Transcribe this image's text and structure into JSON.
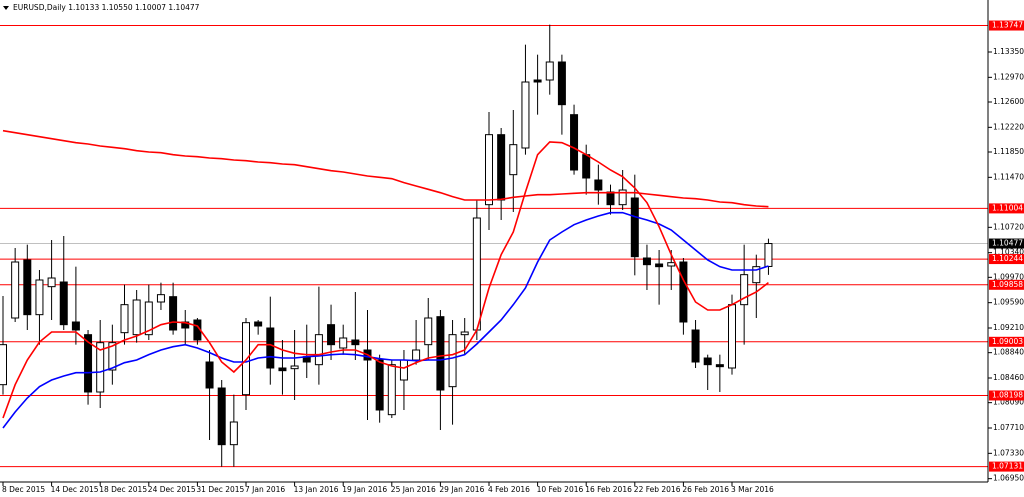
{
  "chart_data": {
    "type": "candlestick",
    "title": "EURUSD,Daily 1.10133 1.10550 1.10007 1.10477",
    "categories": [
      "8 Dec 2015",
      null,
      null,
      null,
      "14 Dec 2015",
      null,
      null,
      null,
      "18 Dec 2015",
      null,
      null,
      null,
      "24 Dec 2015",
      null,
      null,
      null,
      "31 Dec 2015",
      null,
      null,
      null,
      "7 Jan 2016",
      null,
      null,
      null,
      "13 Jan 2016",
      null,
      null,
      null,
      "19 Jan 2016",
      null,
      null,
      null,
      "25 Jan 2016",
      null,
      null,
      null,
      "29 Jan 2016",
      null,
      null,
      null,
      "4 Feb 2016",
      null,
      null,
      null,
      "10 Feb 2016",
      null,
      null,
      null,
      "16 Feb 2016",
      null,
      null,
      null,
      "22 Feb 2016",
      null,
      null,
      null,
      "26 Feb 2016",
      null,
      null,
      null,
      "3 Mar 2016",
      null,
      null,
      null
    ],
    "open": [
      1.0836,
      1.0936,
      1.1023,
      1.0941,
      1.0983,
      1.099,
      1.093,
      1.0911,
      1.0825,
      1.0858,
      1.0914,
      1.0911,
      1.0911,
      1.096,
      1.0968,
      1.093,
      1.0933,
      1.087,
      1.0831,
      1.0746,
      1.0821,
      1.093,
      1.0921,
      1.0861,
      1.086,
      1.0878,
      1.0866,
      1.0926,
      1.0891,
      1.0903,
      1.0888,
      1.0873,
      1.0791,
      1.0843,
      1.0873,
      1.0896,
      1.0938,
      1.0833,
      1.0911,
      1.0918,
      1.1106,
      1.1211,
      1.1151,
      1.1191,
      1.1293,
      1.1293,
      1.132,
      1.1241,
      1.1181,
      1.1143,
      1.1125,
      1.1106,
      1.1116,
      1.1026,
      1.1017,
      1.1014,
      1.102,
      1.0918,
      1.0876,
      1.0866,
      1.0861,
      1.0956,
      1.0989,
      1.10133
    ],
    "high": [
      1.0969,
      1.1041,
      1.1046,
      1.1008,
      1.1053,
      1.1059,
      1.1013,
      1.0918,
      1.0933,
      1.0926,
      1.0986,
      1.0978,
      1.0986,
      1.0989,
      1.0989,
      1.0948,
      1.0936,
      1.0888,
      1.0843,
      1.0821,
      1.0936,
      1.0933,
      1.0968,
      1.0903,
      1.0918,
      1.0926,
      1.0983,
      1.0956,
      1.0926,
      1.0975,
      1.0948,
      1.0881,
      1.0873,
      1.0888,
      1.0933,
      1.0966,
      1.0948,
      1.0933,
      1.0936,
      1.1113,
      1.1245,
      1.1221,
      1.1248,
      1.1346,
      1.1331,
      1.1376,
      1.1331,
      1.1256,
      1.1196,
      1.1166,
      1.1136,
      1.1158,
      1.1151,
      1.1046,
      1.1038,
      1.1038,
      1.1026,
      1.0933,
      1.0881,
      1.0881,
      1.0971,
      1.1046,
      1.1031,
      1.1055
    ],
    "low": [
      1.0821,
      1.093,
      1.0918,
      1.0896,
      1.0933,
      1.0918,
      1.0896,
      1.0806,
      1.0801,
      1.0836,
      1.0896,
      1.0899,
      1.0903,
      1.0948,
      1.0911,
      1.0896,
      1.0896,
      1.0753,
      1.0713,
      1.0713,
      1.0798,
      1.0911,
      1.0836,
      1.0821,
      1.0813,
      1.0846,
      1.0836,
      1.0873,
      1.0881,
      1.0873,
      1.0783,
      1.0779,
      1.0786,
      1.0798,
      1.0866,
      1.0873,
      1.0768,
      1.0776,
      1.0881,
      1.0903,
      1.1068,
      1.1083,
      1.1095,
      1.1181,
      1.1241,
      1.1271,
      1.1211,
      1.1151,
      1.1121,
      1.1106,
      1.1091,
      1.1098,
      1.1,
      1.0978,
      1.0956,
      1.0978,
      1.0911,
      1.0861,
      1.0828,
      1.0825,
      1.0851,
      1.0896,
      1.0936,
      1.10007
    ],
    "close": [
      1.0896,
      1.102,
      1.0941,
      1.0993,
      1.0996,
      1.0926,
      1.0918,
      1.0825,
      1.0899,
      1.0899,
      1.0956,
      1.0963,
      1.096,
      1.0971,
      1.0918,
      1.0921,
      1.0903,
      1.0831,
      1.0746,
      1.078,
      1.0929,
      1.0924,
      1.0861,
      1.0857,
      1.0864,
      1.087,
      1.0911,
      1.0896,
      1.0906,
      1.0896,
      1.0873,
      1.0798,
      1.0866,
      1.0873,
      1.0888,
      1.0936,
      1.0828,
      1.0911,
      1.0915,
      1.1086,
      1.1211,
      1.1113,
      1.1196,
      1.129,
      1.129,
      1.132,
      1.1256,
      1.1158,
      1.1146,
      1.1128,
      1.1106,
      1.1128,
      1.1028,
      1.1016,
      1.1013,
      1.1019,
      1.093,
      1.087,
      1.0866,
      1.0863,
      1.0956,
      1.1001,
      1.1013,
      1.10477
    ],
    "series": [
      {
        "color": "#ff0000",
        "values": [
          1.1217,
          1.1214,
          1.1211,
          1.1208,
          1.1205,
          1.1202,
          1.1199,
          1.1197,
          1.1194,
          1.1192,
          1.119,
          1.1187,
          1.1185,
          1.1184,
          1.1181,
          1.1179,
          1.1178,
          1.1176,
          1.1175,
          1.1173,
          1.1172,
          1.117,
          1.1169,
          1.1167,
          1.1166,
          1.1163,
          1.116,
          1.1157,
          1.1155,
          1.1152,
          1.1149,
          1.1147,
          1.1145,
          1.1139,
          1.1134,
          1.1129,
          1.1124,
          1.1118,
          1.1113,
          1.1113,
          1.1113,
          1.1114,
          1.1117,
          1.1119,
          1.1121,
          1.1121,
          1.1122,
          1.1123,
          1.1124,
          1.1124,
          1.1124,
          1.1124,
          1.1124,
          1.1122,
          1.112,
          1.1118,
          1.1116,
          1.1115,
          1.1113,
          1.111,
          1.1109,
          1.1106,
          1.1104,
          1.1103
        ]
      },
      {
        "color": "#0000ff",
        "values": [
          1.0771,
          1.0795,
          1.0816,
          1.0833,
          1.0843,
          1.0849,
          1.0854,
          1.0854,
          1.0855,
          1.0861,
          1.0869,
          1.0873,
          1.0881,
          1.0888,
          1.0893,
          1.0896,
          1.0891,
          1.0884,
          1.0876,
          1.087,
          1.087,
          1.0876,
          1.0878,
          1.0876,
          1.0876,
          1.0878,
          1.0879,
          1.0881,
          1.0882,
          1.0881,
          1.0878,
          1.0875,
          1.0873,
          1.0873,
          1.0872,
          1.0873,
          1.0873,
          1.0876,
          1.0881,
          1.0897,
          1.0915,
          1.0933,
          1.0956,
          1.0981,
          1.102,
          1.1053,
          1.1065,
          1.1076,
          1.1083,
          1.1089,
          1.1094,
          1.1094,
          1.1088,
          1.1083,
          1.1077,
          1.1068,
          1.1053,
          1.1038,
          1.1023,
          1.1013,
          1.1008,
          1.1008,
          1.1008,
          1.1014
        ]
      },
      {
        "color": "#ff0000",
        "values": [
          1.0786,
          1.0836,
          1.0873,
          1.09,
          1.0915,
          1.0915,
          1.0915,
          1.09,
          1.0888,
          1.0894,
          1.0903,
          1.0909,
          1.0917,
          1.0926,
          1.093,
          1.0929,
          1.0924,
          1.0899,
          1.087,
          1.0855,
          1.0873,
          1.0896,
          1.0896,
          1.0888,
          1.0883,
          1.0881,
          1.0881,
          1.0885,
          1.0888,
          1.0888,
          1.0881,
          1.087,
          1.0864,
          1.0861,
          1.0869,
          1.0876,
          1.0879,
          1.0881,
          1.0888,
          1.0918,
          1.0981,
          1.1031,
          1.1065,
          1.1125,
          1.1181,
          1.12,
          1.1199,
          1.1191,
          1.1181,
          1.117,
          1.1158,
          1.1148,
          1.1131,
          1.1109,
          1.1073,
          1.1031,
          1.0993,
          1.096,
          1.0948,
          1.0948,
          1.0956,
          1.0966,
          1.0975,
          1.0989
        ]
      }
    ],
    "levels": [
      {
        "value": 1.13747,
        "color": "#ff0000"
      },
      {
        "value": 1.11004,
        "color": "#ff0000"
      },
      {
        "value": 1.10244,
        "color": "#ff0000"
      },
      {
        "value": 1.09858,
        "color": "#ff0000"
      },
      {
        "value": 1.09003,
        "color": "#ff0000"
      },
      {
        "value": 1.08198,
        "color": "#ff0000"
      },
      {
        "value": 1.07131,
        "color": "#ff0000"
      }
    ],
    "last_price": {
      "value": 1.10477,
      "color": "#000000"
    },
    "ylim": [
      1.069,
      1.1413
    ],
    "yticks": [
      {
        "value": 1.1335,
        "label": "1.13350"
      },
      {
        "value": 1.1297,
        "label": "1.12970"
      },
      {
        "value": 1.126,
        "label": "1.12600"
      },
      {
        "value": 1.1222,
        "label": "1.12220"
      },
      {
        "value": 1.1185,
        "label": "1.11850"
      },
      {
        "value": 1.1147,
        "label": "1.11470"
      },
      {
        "value": 1.1072,
        "label": "1.10720"
      },
      {
        "value": 1.1034,
        "label": "1.10340"
      },
      {
        "value": 1.0997,
        "label": "1.09970"
      },
      {
        "value": 1.0959,
        "label": "1.09590"
      },
      {
        "value": 1.0921,
        "label": "1.09210"
      },
      {
        "value": 1.0884,
        "label": "1.08840"
      },
      {
        "value": 1.0846,
        "label": "1.08460"
      },
      {
        "value": 1.0809,
        "label": "1.08090"
      },
      {
        "value": 1.0771,
        "label": "1.07710"
      },
      {
        "value": 1.0733,
        "label": "1.07330"
      },
      {
        "value": 1.0695,
        "label": "1.06950"
      }
    ]
  }
}
